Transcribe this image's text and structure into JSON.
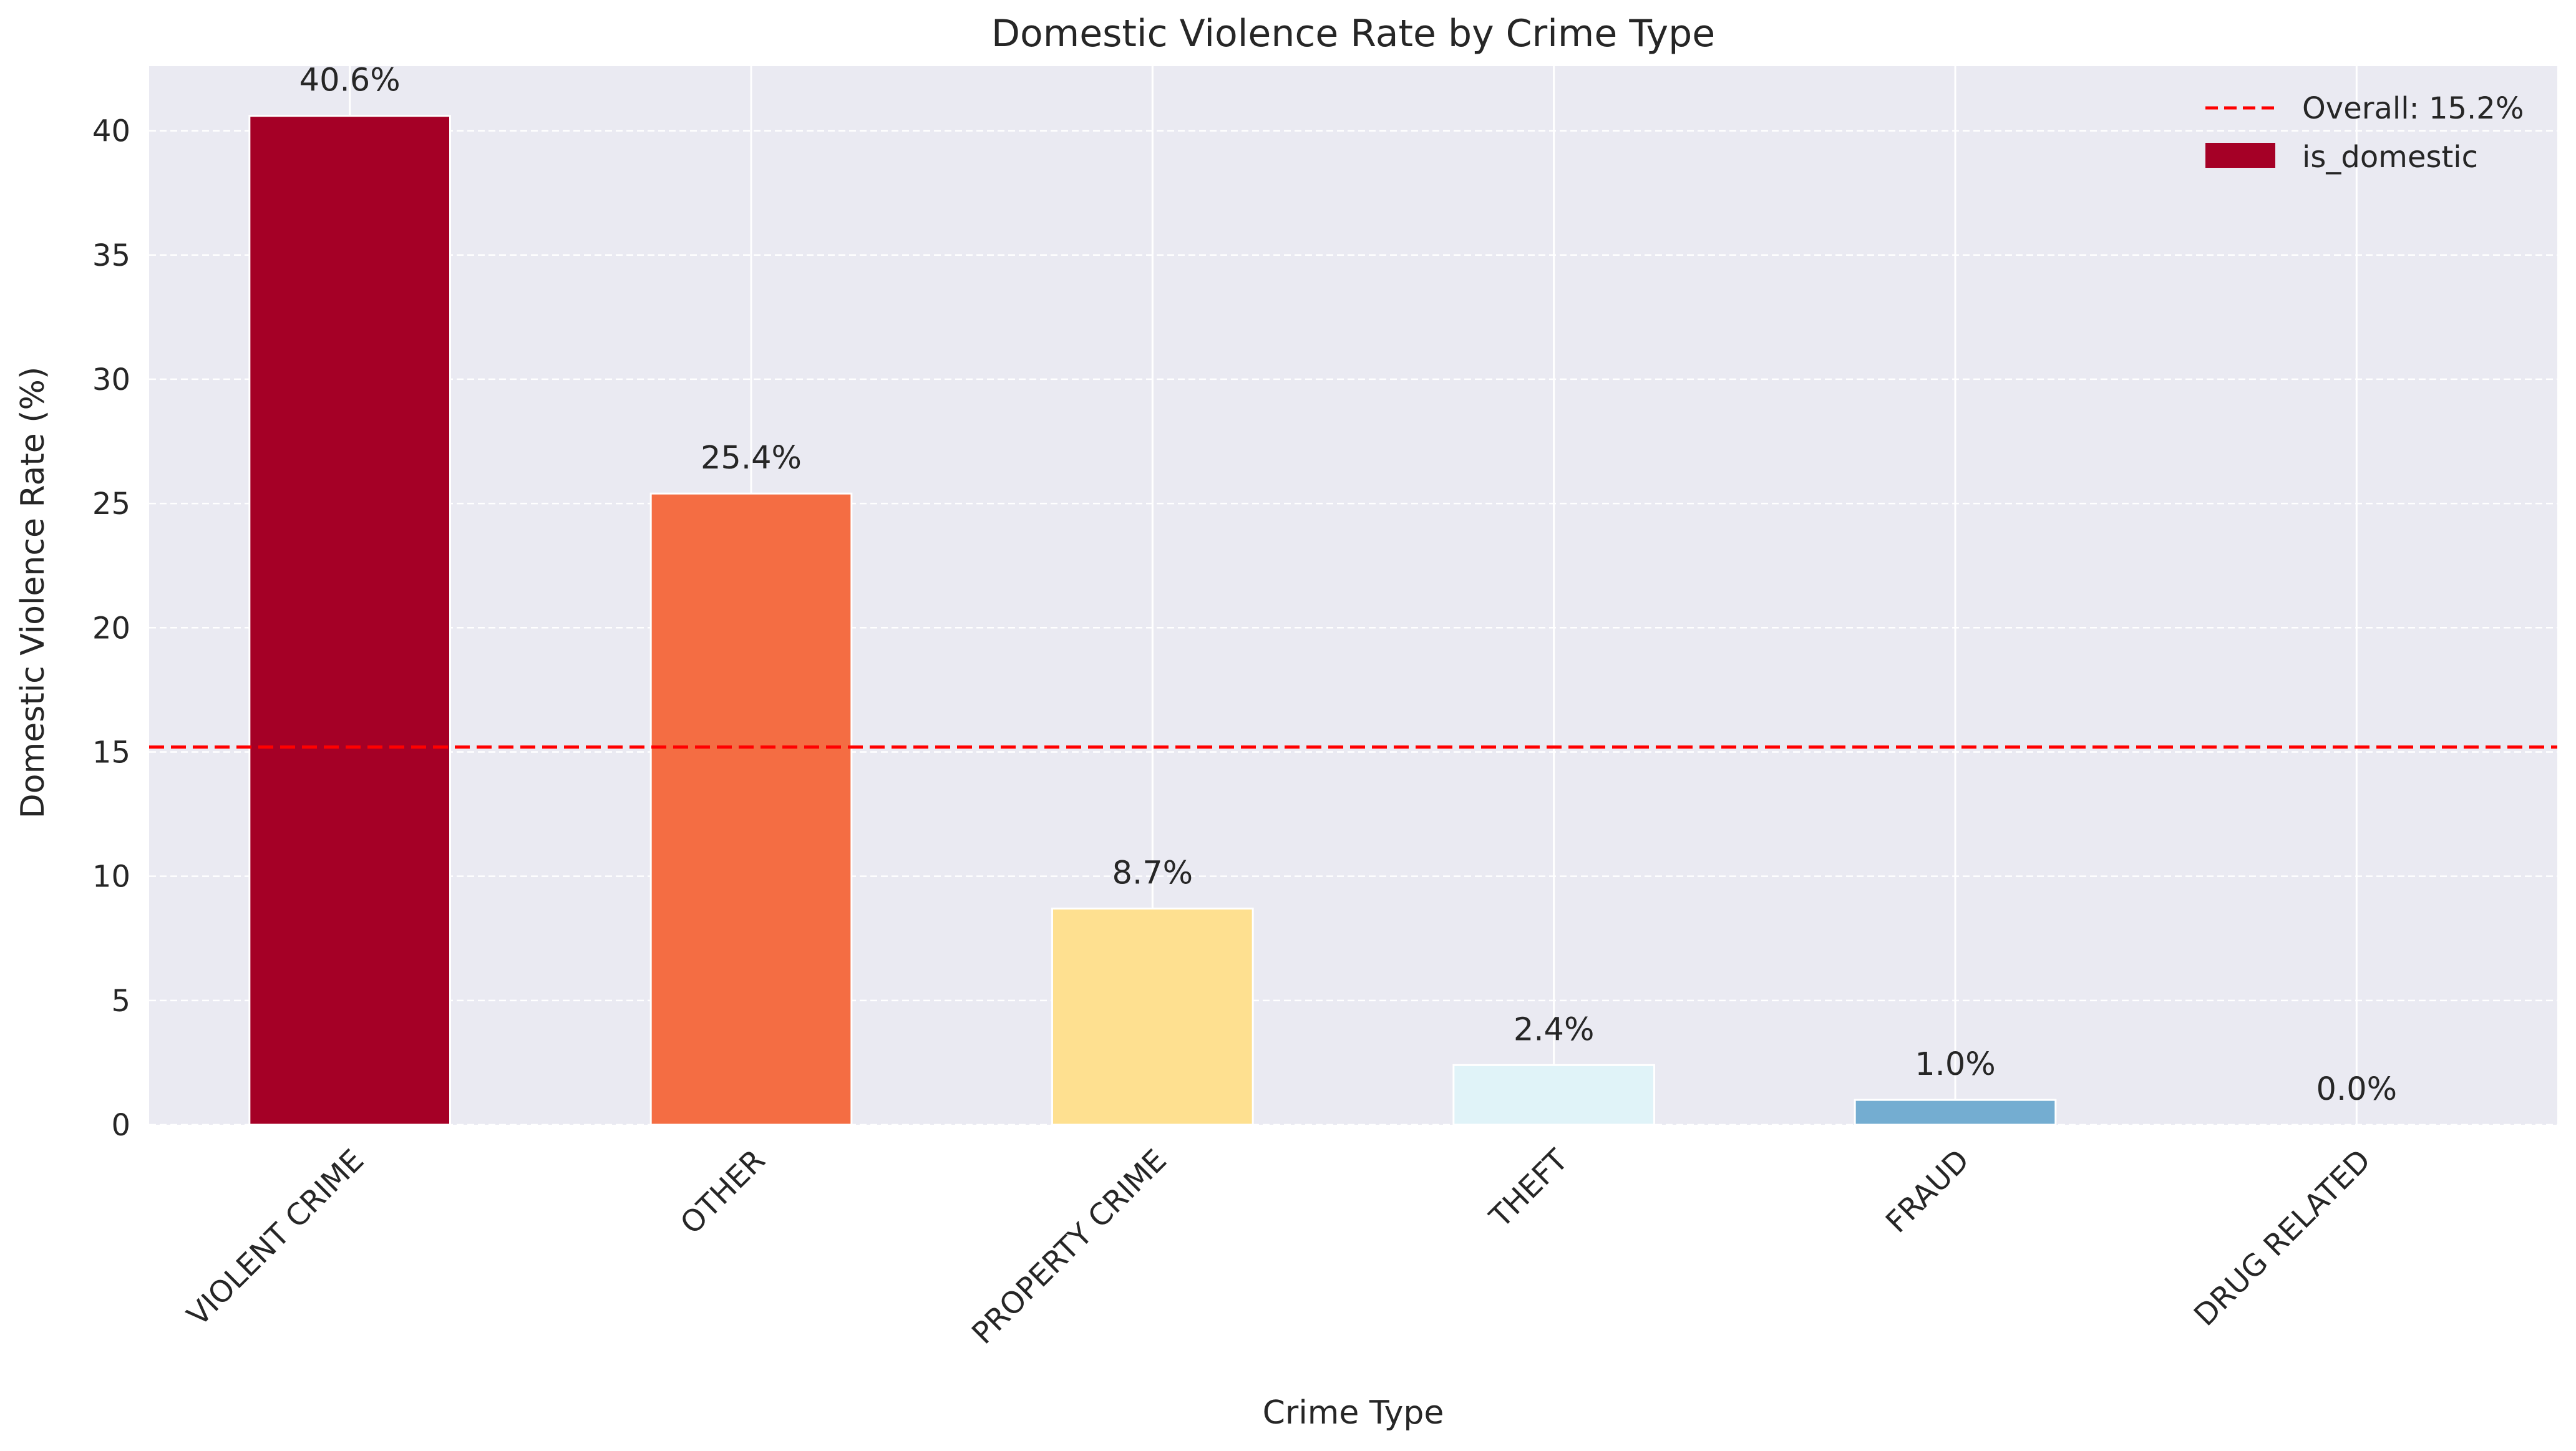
{
  "chart_data": {
    "type": "bar",
    "title": "Domestic Violence Rate by Crime Type",
    "xlabel": "Crime Type",
    "ylabel": "Domestic Violence Rate (%)",
    "categories": [
      "VIOLENT CRIME",
      "OTHER",
      "PROPERTY CRIME",
      "THEFT",
      "FRAUD",
      "DRUG RELATED"
    ],
    "values": [
      40.6,
      25.4,
      8.7,
      2.4,
      1.0,
      0.0
    ],
    "data_labels": [
      "40.6%",
      "25.4%",
      "8.7%",
      "2.4%",
      "1.0%",
      "0.0%"
    ],
    "bar_colors": [
      "#a50026",
      "#f46d43",
      "#fee090",
      "#e0f3f8",
      "#74add1",
      "#313695"
    ],
    "series_name": "is_domestic",
    "ylim": [
      0,
      42.6
    ],
    "yticks": [
      0,
      5,
      10,
      15,
      20,
      25,
      30,
      35,
      40
    ],
    "tick_labels": [
      "0",
      "5",
      "10",
      "15",
      "20",
      "25",
      "30",
      "35",
      "40"
    ],
    "grid": true,
    "background_color": "#eaeaf2",
    "reference_line": {
      "value": 15.2,
      "label": "Overall: 15.2%",
      "color": "#ff0000",
      "style": "dashed"
    },
    "legend": {
      "placement": "top-right",
      "entries": [
        "Overall: 15.2%",
        "is_domestic"
      ]
    }
  }
}
